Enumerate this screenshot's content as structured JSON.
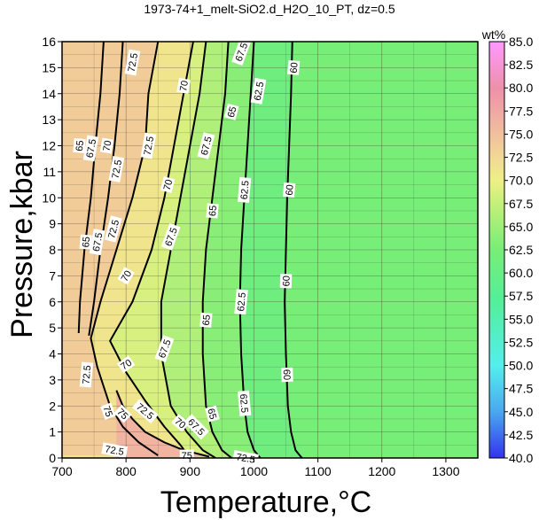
{
  "chart_data": {
    "type": "heatmap",
    "title": "1973-74+1_melt-SiO2.d_H2O_10_PT, dz=0.5",
    "xlabel": "Temperature,°C",
    "ylabel": "Pressure,kbar",
    "xlim": [
      700,
      1350
    ],
    "ylim": [
      0,
      16
    ],
    "x_ticks": [
      "700",
      "800",
      "900",
      "1000",
      "1100",
      "1200",
      "1300"
    ],
    "y_ticks": [
      "0",
      "1",
      "2",
      "3",
      "4",
      "5",
      "6",
      "7",
      "8",
      "9",
      "10",
      "11",
      "12",
      "13",
      "14",
      "15",
      "16"
    ],
    "grid": true,
    "colorbar": {
      "title": "wt%",
      "min": 40.0,
      "max": 85.0,
      "labels": [
        "40.0",
        "42.5",
        "45.0",
        "47.5",
        "50.0",
        "52.5",
        "55.0",
        "57.5",
        "60.0",
        "62.5",
        "65.0",
        "67.5",
        "70.0",
        "72.5",
        "75.0",
        "77.5",
        "80.0",
        "82.5",
        "85.0"
      ],
      "stops": [
        {
          "v": 40.0,
          "c": "#3333ee"
        },
        {
          "v": 45.0,
          "c": "#4aa8ee"
        },
        {
          "v": 50.0,
          "c": "#55eeee"
        },
        {
          "v": 57.0,
          "c": "#55ee99"
        },
        {
          "v": 62.5,
          "c": "#77ee77"
        },
        {
          "v": 67.5,
          "c": "#c4f07a"
        },
        {
          "v": 70.0,
          "c": "#eef085"
        },
        {
          "v": 72.5,
          "c": "#f2d896"
        },
        {
          "v": 76.0,
          "c": "#f0b6a0"
        },
        {
          "v": 80.0,
          "c": "#ee90aa"
        },
        {
          "v": 85.0,
          "c": "#ff99ff"
        }
      ]
    },
    "contours": [
      {
        "level": "60",
        "points": [
          [
            1060,
            16
          ],
          [
            1058,
            14
          ],
          [
            1055,
            12
          ],
          [
            1052,
            10
          ],
          [
            1050,
            8
          ],
          [
            1048,
            6
          ],
          [
            1050,
            4
          ],
          [
            1053,
            2
          ],
          [
            1058,
            1
          ],
          [
            1065,
            0.3
          ],
          [
            1075,
            0
          ]
        ]
      },
      {
        "level": "62.5",
        "points": [
          [
            1000,
            16
          ],
          [
            995,
            14
          ],
          [
            990,
            12
          ],
          [
            985,
            10
          ],
          [
            980,
            8
          ],
          [
            978,
            6
          ],
          [
            980,
            4
          ],
          [
            985,
            2
          ],
          [
            990,
            1
          ],
          [
            1000,
            0.3
          ],
          [
            1010,
            0
          ]
        ]
      },
      {
        "level": "65",
        "points": [
          [
            960,
            16
          ],
          [
            955,
            14
          ],
          [
            945,
            12
          ],
          [
            935,
            10
          ],
          [
            925,
            8
          ],
          [
            920,
            6
          ],
          [
            920,
            4
          ],
          [
            925,
            2
          ],
          [
            935,
            1
          ],
          [
            950,
            0.3
          ],
          [
            965,
            0
          ]
        ]
      },
      {
        "level": "67.5",
        "points": [
          [
            925,
            16
          ],
          [
            915,
            14
          ],
          [
            900,
            12
          ],
          [
            885,
            10
          ],
          [
            870,
            8
          ],
          [
            855,
            6
          ],
          [
            855,
            4
          ],
          [
            870,
            2
          ],
          [
            895,
            1
          ],
          [
            920,
            0.3
          ],
          [
            940,
            0
          ]
        ]
      },
      {
        "level": "70",
        "points": [
          [
            905,
            16
          ],
          [
            890,
            14
          ],
          [
            875,
            12
          ],
          [
            860,
            10
          ],
          [
            840,
            8
          ],
          [
            810,
            6
          ],
          [
            775,
            4.5
          ],
          [
            800,
            3.3
          ],
          [
            830,
            2.2
          ],
          [
            860,
            1.2
          ],
          [
            885,
            0.5
          ],
          [
            900,
            0
          ]
        ]
      },
      {
        "level": "72.5",
        "points": [
          [
            850,
            16
          ],
          [
            835,
            14
          ],
          [
            830,
            12
          ],
          [
            810,
            10
          ],
          [
            785,
            8
          ],
          [
            760,
            6
          ],
          [
            745,
            4.6
          ],
          [
            755,
            3.5
          ],
          [
            775,
            2
          ],
          [
            795,
            1.2
          ],
          [
            820,
            0.6
          ],
          [
            850,
            0.1
          ]
        ]
      },
      {
        "level": "75",
        "points": [
          [
            785,
            2.6
          ],
          [
            795,
            2.0
          ],
          [
            810,
            1.5
          ],
          [
            830,
            1.0
          ],
          [
            860,
            0.6
          ],
          [
            890,
            0.3
          ],
          [
            930,
            0.05
          ]
        ]
      },
      {
        "level": "67.5",
        "points": [
          [
            795,
            16
          ],
          [
            790,
            14
          ],
          [
            782,
            12
          ],
          [
            772,
            10
          ],
          [
            760,
            8
          ],
          [
            750,
            6
          ],
          [
            742,
            4.7
          ]
        ]
      },
      {
        "level": "65",
        "points": [
          [
            765,
            16
          ],
          [
            760,
            14
          ],
          [
            752,
            12
          ],
          [
            745,
            10
          ],
          [
            735,
            8
          ],
          [
            728,
            6
          ],
          [
            726,
            4.8
          ]
        ]
      }
    ],
    "contour_labels": [
      {
        "text": "72.5",
        "x": 810,
        "y": 15.2,
        "rot": -80
      },
      {
        "text": "67.5",
        "x": 980,
        "y": 15.6,
        "rot": -70
      },
      {
        "text": "60",
        "x": 1062,
        "y": 15.0,
        "rot": -85
      },
      {
        "text": "62.5",
        "x": 1007,
        "y": 14.1,
        "rot": -80
      },
      {
        "text": "65",
        "x": 965,
        "y": 13.3,
        "rot": -75
      },
      {
        "text": "70",
        "x": 890,
        "y": 14.3,
        "rot": -80
      },
      {
        "text": "65",
        "x": 727,
        "y": 12.0,
        "rot": -85
      },
      {
        "text": "67.5",
        "x": 745,
        "y": 11.9,
        "rot": -80
      },
      {
        "text": "70",
        "x": 770,
        "y": 12.0,
        "rot": -80
      },
      {
        "text": "72.5",
        "x": 835,
        "y": 12.0,
        "rot": -80
      },
      {
        "text": "67.5",
        "x": 925,
        "y": 12.0,
        "rot": -75
      },
      {
        "text": "70",
        "x": 865,
        "y": 10.5,
        "rot": -75
      },
      {
        "text": "72.5",
        "x": 785,
        "y": 11.1,
        "rot": -80
      },
      {
        "text": "65",
        "x": 737,
        "y": 8.3,
        "rot": -85
      },
      {
        "text": "67.5",
        "x": 755,
        "y": 8.3,
        "rot": -80
      },
      {
        "text": "72.5",
        "x": 780,
        "y": 8.8,
        "rot": -75
      },
      {
        "text": "67.5",
        "x": 870,
        "y": 8.5,
        "rot": -70
      },
      {
        "text": "70",
        "x": 800,
        "y": 7.0,
        "rot": -60
      },
      {
        "text": "60",
        "x": 1055,
        "y": 10.3,
        "rot": -85
      },
      {
        "text": "62.5",
        "x": 985,
        "y": 10.3,
        "rot": -85
      },
      {
        "text": "65",
        "x": 935,
        "y": 9.5,
        "rot": -85
      },
      {
        "text": "60",
        "x": 1050,
        "y": 6.8,
        "rot": -88
      },
      {
        "text": "62.5",
        "x": 980,
        "y": 6.0,
        "rot": -85
      },
      {
        "text": "65",
        "x": 925,
        "y": 5.3,
        "rot": -85
      },
      {
        "text": "67.5",
        "x": 860,
        "y": 4.2,
        "rot": -70
      },
      {
        "text": "70",
        "x": 800,
        "y": 3.6,
        "rot": -35
      },
      {
        "text": "72.5",
        "x": 738,
        "y": 3.2,
        "rot": -85
      },
      {
        "text": "60",
        "x": 1052,
        "y": 3.2,
        "rot": 88
      },
      {
        "text": "62.5",
        "x": 985,
        "y": 2.1,
        "rot": 85
      },
      {
        "text": "65",
        "x": 935,
        "y": 1.7,
        "rot": 75
      },
      {
        "text": "67.5",
        "x": 910,
        "y": 1.2,
        "rot": 45
      },
      {
        "text": "70",
        "x": 885,
        "y": 1.35,
        "rot": 40
      },
      {
        "text": "72.5",
        "x": 830,
        "y": 1.8,
        "rot": 40
      },
      {
        "text": "75",
        "x": 795,
        "y": 1.7,
        "rot": 45
      },
      {
        "text": "75",
        "x": 772,
        "y": 1.8,
        "rot": 70
      },
      {
        "text": "72.5",
        "x": 782,
        "y": 0.3,
        "rot": 10
      },
      {
        "text": "75",
        "x": 895,
        "y": 0.1,
        "rot": 0
      },
      {
        "text": "72.5",
        "x": 987,
        "y": 0.0,
        "rot": 10
      }
    ]
  }
}
